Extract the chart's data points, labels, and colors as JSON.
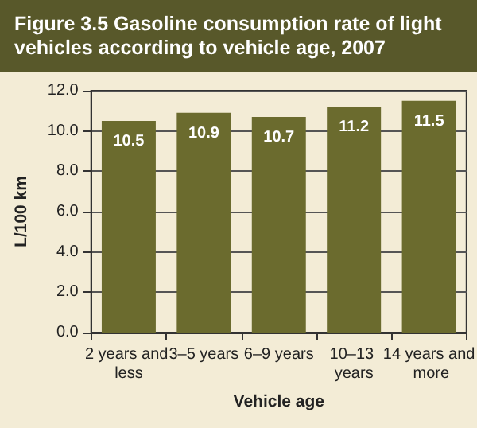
{
  "chart_data": {
    "type": "bar",
    "title": "Figure 3.5  Gasoline consumption rate of light vehicles according to vehicle age, 2007",
    "xlabel": "Vehicle age",
    "ylabel": "L/100 km",
    "categories": [
      "2 years and less",
      "3–5 years",
      "6–9 years",
      "10–13 years",
      "14 years and more"
    ],
    "values": [
      10.5,
      10.9,
      10.7,
      11.2,
      11.5
    ],
    "color": "#6b6b2e",
    "ylim": [
      0,
      12
    ],
    "yticks": [
      {
        "value": 0,
        "label": "0.0"
      },
      {
        "value": 2,
        "label": "2.0"
      },
      {
        "value": 4,
        "label": "4.0"
      },
      {
        "value": 6,
        "label": "6.0"
      },
      {
        "value": 8,
        "label": "8.0"
      },
      {
        "value": 10,
        "label": "10.0"
      },
      {
        "value": 12,
        "label": "12.0"
      }
    ],
    "grid": "y",
    "data_labels": true
  }
}
